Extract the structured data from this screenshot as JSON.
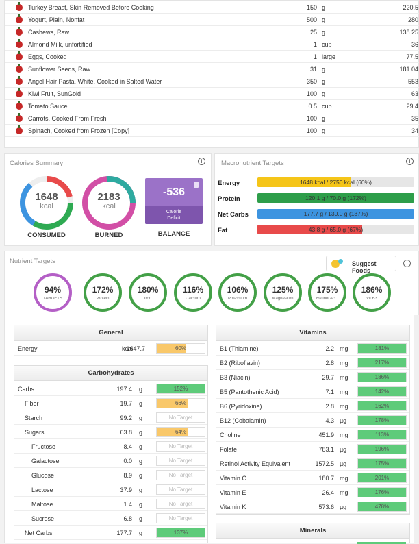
{
  "food_log": [
    {
      "name": "Turkey Breast, Skin Removed Before Cooking",
      "amount": "150",
      "unit": "g",
      "kcal": "220.5"
    },
    {
      "name": "Yogurt, Plain, Nonfat",
      "amount": "500",
      "unit": "g",
      "kcal": "280"
    },
    {
      "name": "Cashews, Raw",
      "amount": "25",
      "unit": "g",
      "kcal": "138.25"
    },
    {
      "name": "Almond Milk, unfortified",
      "amount": "1",
      "unit": "cup",
      "kcal": "36"
    },
    {
      "name": "Eggs, Cooked",
      "amount": "1",
      "unit": "large",
      "kcal": "77.5"
    },
    {
      "name": "Sunflower Seeds, Raw",
      "amount": "31",
      "unit": "g",
      "kcal": "181.04"
    },
    {
      "name": "Angel Hair Pasta, White, Cooked in Salted Water",
      "amount": "350",
      "unit": "g",
      "kcal": "553"
    },
    {
      "name": "Kiwi Fruit, SunGold",
      "amount": "100",
      "unit": "g",
      "kcal": "63"
    },
    {
      "name": "Tomato Sauce",
      "amount": "0.5",
      "unit": "cup",
      "kcal": "29.4"
    },
    {
      "name": "Carrots, Cooked From Fresh",
      "amount": "100",
      "unit": "g",
      "kcal": "35"
    },
    {
      "name": "Spinach, Cooked from Frozen [Copy]",
      "amount": "100",
      "unit": "g",
      "kcal": "34"
    }
  ],
  "calories_summary": {
    "title": "Calories Summary",
    "consumed": {
      "value": "1648",
      "unit": "kcal",
      "label": "CONSUMED"
    },
    "burned": {
      "value": "2183",
      "unit": "kcal",
      "label": "BURNED"
    },
    "balance": {
      "value": "-536",
      "sub1": "Calorie",
      "sub2": "Deficit",
      "label": "BALANCE"
    }
  },
  "macro_targets": {
    "title": "Macronutrient Targets",
    "items": [
      {
        "label": "Energy",
        "text": "1648 kcal / 2750 kcal (60%)",
        "fraction": 0.6,
        "color": "#f5c518"
      },
      {
        "label": "Protein",
        "text": "120.1 g / 70.0 g (172%)",
        "fraction": 1.0,
        "color": "#2e9e4a"
      },
      {
        "label": "Net Carbs",
        "text": "177.7 g / 130.0 g (137%)",
        "fraction": 1.0,
        "color": "#3d94e0"
      },
      {
        "label": "Fat",
        "text": "43.8 g / 65.0 g (67%)",
        "fraction": 0.67,
        "color": "#e84a4a"
      }
    ]
  },
  "nutrient_targets": {
    "title": "Nutrient Targets",
    "suggest_label": "Suggest Foods",
    "rings": [
      {
        "pct": "94%",
        "name": "TARGETS",
        "color": "#b45fc6"
      },
      {
        "pct": "172%",
        "name": "Protein",
        "color": "#43a047"
      },
      {
        "pct": "180%",
        "name": "Iron",
        "color": "#43a047"
      },
      {
        "pct": "116%",
        "name": "Calcium",
        "color": "#43a047"
      },
      {
        "pct": "106%",
        "name": "Potassium",
        "color": "#43a047"
      },
      {
        "pct": "125%",
        "name": "Magnesium",
        "color": "#43a047"
      },
      {
        "pct": "175%",
        "name": "Retinol Ac...",
        "color": "#43a047"
      },
      {
        "pct": "186%",
        "name": "Vit.B3",
        "color": "#43a047"
      }
    ]
  },
  "general": {
    "title": "General",
    "rows": [
      {
        "name": "Energy",
        "value": "1647.7",
        "unit": "kcal",
        "bar": "60%",
        "fraction": 0.6,
        "color": "#f9c86a"
      }
    ]
  },
  "carbohydrates": {
    "title": "Carbohydrates",
    "rows": [
      {
        "name": "Carbs",
        "indent": 0,
        "value": "197.4",
        "unit": "g",
        "bar": "152%",
        "fraction": 1.0,
        "color": "#5ecb7a"
      },
      {
        "name": "Fiber",
        "indent": 1,
        "value": "19.7",
        "unit": "g",
        "bar": "66%",
        "fraction": 0.66,
        "color": "#f9c86a"
      },
      {
        "name": "Starch",
        "indent": 1,
        "value": "99.2",
        "unit": "g",
        "bar": "No Target",
        "fraction": 0,
        "color": ""
      },
      {
        "name": "Sugars",
        "indent": 1,
        "value": "63.8",
        "unit": "g",
        "bar": "64%",
        "fraction": 0.64,
        "color": "#f9c86a"
      },
      {
        "name": "Fructose",
        "indent": 2,
        "value": "8.4",
        "unit": "g",
        "bar": "No Target",
        "fraction": 0,
        "color": ""
      },
      {
        "name": "Galactose",
        "indent": 2,
        "value": "0.0",
        "unit": "g",
        "bar": "No Target",
        "fraction": 0,
        "color": ""
      },
      {
        "name": "Glucose",
        "indent": 2,
        "value": "8.9",
        "unit": "g",
        "bar": "No Target",
        "fraction": 0,
        "color": ""
      },
      {
        "name": "Lactose",
        "indent": 2,
        "value": "37.9",
        "unit": "g",
        "bar": "No Target",
        "fraction": 0,
        "color": ""
      },
      {
        "name": "Maltose",
        "indent": 2,
        "value": "1.4",
        "unit": "g",
        "bar": "No Target",
        "fraction": 0,
        "color": ""
      },
      {
        "name": "Sucrose",
        "indent": 2,
        "value": "6.8",
        "unit": "g",
        "bar": "No Target",
        "fraction": 0,
        "color": ""
      },
      {
        "name": "Net Carbs",
        "indent": 1,
        "value": "177.7",
        "unit": "g",
        "bar": "137%",
        "fraction": 1.0,
        "color": "#5ecb7a"
      }
    ]
  },
  "vitamins": {
    "title": "Vitamins",
    "rows": [
      {
        "name": "B1 (Thiamine)",
        "value": "2.2",
        "unit": "mg",
        "bar": "181%",
        "fraction": 1.0,
        "color": "#5ecb7a"
      },
      {
        "name": "B2 (Riboflavin)",
        "value": "2.8",
        "unit": "mg",
        "bar": "217%",
        "fraction": 1.0,
        "color": "#5ecb7a"
      },
      {
        "name": "B3 (Niacin)",
        "value": "29.7",
        "unit": "mg",
        "bar": "186%",
        "fraction": 1.0,
        "color": "#5ecb7a"
      },
      {
        "name": "B5 (Pantothenic Acid)",
        "value": "7.1",
        "unit": "mg",
        "bar": "142%",
        "fraction": 1.0,
        "color": "#5ecb7a"
      },
      {
        "name": "B6 (Pyridoxine)",
        "value": "2.8",
        "unit": "mg",
        "bar": "162%",
        "fraction": 1.0,
        "color": "#5ecb7a"
      },
      {
        "name": "B12 (Cobalamin)",
        "value": "4.3",
        "unit": "µg",
        "bar": "178%",
        "fraction": 1.0,
        "color": "#5ecb7a"
      },
      {
        "name": "Choline",
        "value": "451.9",
        "unit": "mg",
        "bar": "113%",
        "fraction": 1.0,
        "color": "#5ecb7a"
      },
      {
        "name": "Folate",
        "value": "783.1",
        "unit": "µg",
        "bar": "196%",
        "fraction": 1.0,
        "color": "#5ecb7a"
      },
      {
        "name": "Retinol Activity Equivalent",
        "value": "1572.5",
        "unit": "µg",
        "bar": "175%",
        "fraction": 1.0,
        "color": "#5ecb7a"
      },
      {
        "name": "Vitamin C",
        "value": "180.7",
        "unit": "mg",
        "bar": "201%",
        "fraction": 1.0,
        "color": "#5ecb7a"
      },
      {
        "name": "Vitamin E",
        "value": "26.4",
        "unit": "mg",
        "bar": "176%",
        "fraction": 1.0,
        "color": "#5ecb7a"
      },
      {
        "name": "Vitamin K",
        "value": "573.6",
        "unit": "µg",
        "bar": "478%",
        "fraction": 1.0,
        "color": "#5ecb7a"
      }
    ]
  },
  "minerals": {
    "title": "Minerals"
  }
}
